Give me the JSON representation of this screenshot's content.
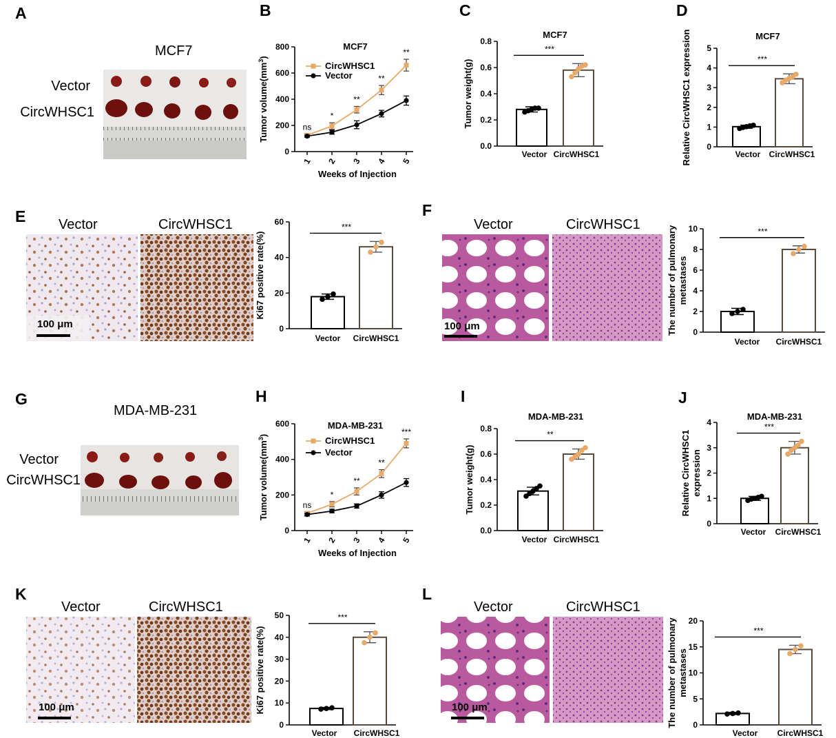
{
  "colors": {
    "circ": "#e8a868",
    "vector": "#000000"
  },
  "panels": {
    "A": {
      "letter": "A",
      "cell_line": "MCF7",
      "rows": [
        "Vector",
        "CircWHSC1"
      ]
    },
    "E": {
      "letter": "E",
      "col1": "Vector",
      "col2": "CircWHSC1",
      "scale": "100 μm"
    },
    "F": {
      "letter": "F",
      "col1": "Vector",
      "col2": "CircWHSC1",
      "scale": "100 μm"
    },
    "G": {
      "letter": "G",
      "cell_line": "MDA-MB-231",
      "rows": [
        "Vector",
        "CircWHSC1"
      ]
    },
    "K": {
      "letter": "K",
      "col1": "Vector",
      "col2": "CircWHSC1",
      "scale": "100 μm"
    },
    "L": {
      "letter": "L",
      "col1": "Vector",
      "col2": "CircWHSC1",
      "scale": "100 μm"
    }
  },
  "chart_data": [
    {
      "id": "B",
      "type": "line",
      "title": "MCF7",
      "xlabel": "Weeks of Injection",
      "ylabel": "Tumor volume(mm",
      "ylabel_sup": "3",
      "ylabel_end": ")",
      "x": [
        1,
        2,
        3,
        4,
        5
      ],
      "xticks": [
        "1",
        "2",
        "3",
        "4",
        "5"
      ],
      "ylim": [
        0,
        800
      ],
      "yticks": [
        0,
        200,
        400,
        600,
        800
      ],
      "series": [
        {
          "name": "CircWHSC1",
          "values": [
            125,
            195,
            320,
            470,
            660
          ],
          "errors": [
            10,
            25,
            25,
            35,
            45
          ]
        },
        {
          "name": "Vector",
          "values": [
            118,
            148,
            205,
            290,
            390
          ],
          "errors": [
            8,
            15,
            30,
            25,
            35
          ]
        }
      ],
      "significance": [
        "ns",
        "*",
        "**",
        "**",
        "**"
      ]
    },
    {
      "id": "C",
      "type": "bar",
      "title": "MCF7",
      "ylabel": "Tumor weight(g)",
      "categories": [
        "Vector",
        "CircWHSC1"
      ],
      "values": [
        0.28,
        0.58
      ],
      "errors": [
        0.02,
        0.05
      ],
      "points": [
        [
          0.26,
          0.27,
          0.28,
          0.29,
          0.29
        ],
        [
          0.53,
          0.56,
          0.59,
          0.61,
          0.62
        ]
      ],
      "ylim": [
        0,
        0.8
      ],
      "yticks": [
        "0.0",
        "0.2",
        "0.4",
        "0.6",
        "0.8"
      ],
      "significance": "***"
    },
    {
      "id": "D",
      "type": "bar",
      "title": "MCF7",
      "ylabel": "Relative CircWHSC1 expression",
      "categories": [
        "Vector",
        "CircWHSC1"
      ],
      "values": [
        1.02,
        3.45
      ],
      "errors": [
        0.08,
        0.25
      ],
      "points": [
        [
          0.93,
          0.98,
          1.02,
          1.06,
          1.09
        ],
        [
          3.25,
          3.38,
          3.47,
          3.55,
          3.68
        ]
      ],
      "ylim": [
        0,
        5
      ],
      "yticks": [
        "0",
        "1",
        "2",
        "3",
        "4",
        "5"
      ],
      "significance": "***"
    },
    {
      "id": "E",
      "type": "bar",
      "ylabel": "Ki67 positive rate(%)",
      "categories": [
        "Vector",
        "CircWHSC1"
      ],
      "values": [
        18,
        46
      ],
      "errors": [
        1.5,
        3
      ],
      "points": [
        [
          16.5,
          18,
          19.5
        ],
        [
          43,
          46,
          48.5
        ]
      ],
      "ylim": [
        0,
        60
      ],
      "yticks": [
        "0",
        "20",
        "40",
        "60"
      ],
      "significance": "***"
    },
    {
      "id": "F",
      "type": "bar",
      "ylabel": "The number of pulmonary",
      "ylabel2": "metastases",
      "categories": [
        "Vector",
        "CircWHSC1"
      ],
      "values": [
        2,
        8
      ],
      "errors": [
        0.3,
        0.35
      ],
      "points": [
        [
          1.8,
          2,
          2.2
        ],
        [
          7.6,
          8,
          8.3
        ]
      ],
      "ylim": [
        0,
        10
      ],
      "yticks": [
        "0",
        "2",
        "4",
        "6",
        "8",
        "10"
      ],
      "significance": "***"
    },
    {
      "id": "H",
      "type": "line",
      "title": "MDA-MB-231",
      "xlabel": "Weeks of Injection",
      "ylabel": "Tumor volume(mm",
      "ylabel_sup": "3",
      "ylabel_end": ")",
      "x": [
        1,
        2,
        3,
        4,
        5
      ],
      "xticks": [
        "1",
        "2",
        "3",
        "4",
        "5"
      ],
      "ylim": [
        0,
        600
      ],
      "yticks": [
        0,
        200,
        400,
        600
      ],
      "series": [
        {
          "name": "CircWHSC1",
          "values": [
            97,
            148,
            220,
            320,
            490
          ],
          "errors": [
            10,
            15,
            20,
            22,
            25
          ]
        },
        {
          "name": "Vector",
          "values": [
            90,
            110,
            138,
            200,
            270
          ],
          "errors": [
            8,
            10,
            12,
            18,
            22
          ]
        }
      ],
      "significance": [
        "ns",
        "*",
        "**",
        "**",
        "***"
      ]
    },
    {
      "id": "I",
      "type": "bar",
      "title": "MDA-MB-231",
      "ylabel": "Tumor weight(g)",
      "categories": [
        "Vector",
        "CircWHSC1"
      ],
      "values": [
        0.31,
        0.6
      ],
      "errors": [
        0.03,
        0.04
      ],
      "points": [
        [
          0.27,
          0.29,
          0.31,
          0.33,
          0.35
        ],
        [
          0.56,
          0.58,
          0.6,
          0.63,
          0.65
        ]
      ],
      "ylim": [
        0,
        0.8
      ],
      "yticks": [
        "0.0",
        "0.2",
        "0.4",
        "0.6",
        "0.8"
      ],
      "significance": "**"
    },
    {
      "id": "J",
      "type": "bar",
      "title": "MDA-MB-231",
      "ylabel": "Relative CircWHSC1",
      "ylabel2": "expression",
      "categories": [
        "Vector",
        "CircWHSC1"
      ],
      "values": [
        1.0,
        3.0
      ],
      "errors": [
        0.08,
        0.25
      ],
      "points": [
        [
          0.92,
          0.97,
          1.0,
          1.04,
          1.08
        ],
        [
          2.75,
          2.9,
          3.0,
          3.1,
          3.25
        ]
      ],
      "ylim": [
        0,
        4
      ],
      "yticks": [
        "0",
        "1",
        "2",
        "3",
        "4"
      ],
      "significance": "***"
    },
    {
      "id": "K",
      "type": "bar",
      "ylabel": "Ki67 positive rate(%)",
      "categories": [
        "Vector",
        "CircWHSC1"
      ],
      "values": [
        7.5,
        40
      ],
      "errors": [
        0.5,
        2.5
      ],
      "points": [
        [
          7.2,
          7.5,
          7.8
        ],
        [
          37.5,
          40,
          42
        ]
      ],
      "ylim": [
        0,
        50
      ],
      "yticks": [
        "0",
        "10",
        "20",
        "30",
        "40",
        "50"
      ],
      "significance": "***"
    },
    {
      "id": "L",
      "type": "bar",
      "ylabel": "The number of pulmonary",
      "ylabel2": "metastases",
      "categories": [
        "Vector",
        "CircWHSC1"
      ],
      "values": [
        2.2,
        14.5
      ],
      "errors": [
        0.2,
        0.8
      ],
      "points": [
        [
          2.1,
          2.2,
          2.3
        ],
        [
          13.7,
          14.5,
          15.2
        ]
      ],
      "ylim": [
        0,
        20
      ],
      "yticks": [
        "0",
        "5",
        "10",
        "15",
        "20"
      ],
      "significance": "***"
    }
  ]
}
